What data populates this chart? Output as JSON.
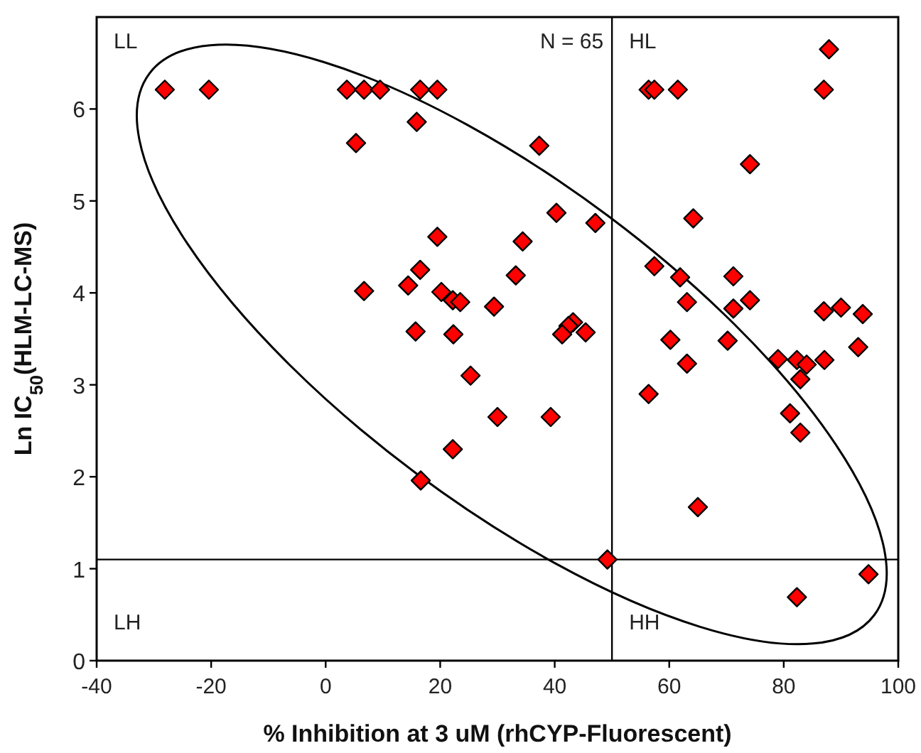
{
  "chart_data": {
    "type": "scatter",
    "xlabel": "% Inhibition at 3 uM (rhCYP-Fluorescent)",
    "ylabel": "Ln IC$_{50}$(HLM-LC-MS)",
    "xlim": [
      -40,
      100
    ],
    "xticks": [
      -40,
      -20,
      0,
      20,
      40,
      60,
      80,
      100
    ],
    "ylim": [
      0,
      7
    ],
    "yticks": [
      0,
      1,
      2,
      3,
      4,
      5,
      6
    ],
    "grid": false,
    "ref_lines": [
      {
        "axis": "x",
        "value": 50,
        "color": "#000000"
      },
      {
        "axis": "y",
        "value": 1.1,
        "color": "#000000"
      }
    ],
    "annotations": [
      "LL",
      "N = 65",
      "HL",
      "LH",
      "HH"
    ],
    "series": [
      {
        "type": "scatter",
        "color": "#ff0000",
        "marker": "diamond",
        "x": [
          -28.1,
          -20.4,
          3.7,
          6.7,
          9.5,
          16.5,
          19.5,
          15.9,
          5.3,
          19.5,
          16.5,
          14.4,
          6.7,
          20.2,
          22.2,
          23.5,
          29.4,
          15.7,
          22.3,
          87.9,
          56.4,
          57.4,
          61.5,
          87.0,
          37.3,
          74.1,
          40.3,
          47.1,
          64.2,
          34.4,
          33.2,
          57.4,
          61.9,
          71.2,
          63.1,
          71.2,
          74.1,
          87.0,
          90.0,
          93.8,
          43.2,
          42.4,
          41.3,
          45.4,
          60.2,
          70.2,
          93.0,
          63.1,
          79.0,
          82.3,
          84.0,
          87.1,
          82.9,
          56.4,
          81.1,
          82.9,
          65.0,
          49.2,
          94.8,
          82.3,
          30.0,
          39.3,
          25.3,
          22.2,
          16.6
        ],
        "values": [
          6.21,
          6.21,
          6.21,
          6.21,
          6.21,
          6.21,
          6.21,
          5.86,
          5.63,
          4.61,
          4.25,
          4.08,
          4.02,
          4.01,
          3.92,
          3.9,
          3.85,
          3.58,
          3.55,
          6.65,
          6.21,
          6.21,
          6.21,
          6.21,
          5.6,
          5.4,
          4.87,
          4.76,
          4.81,
          4.56,
          4.19,
          4.29,
          4.17,
          4.18,
          3.9,
          3.83,
          3.92,
          3.8,
          3.84,
          3.77,
          3.68,
          3.64,
          3.55,
          3.57,
          3.49,
          3.48,
          3.41,
          3.23,
          3.28,
          3.27,
          3.22,
          3.27,
          3.06,
          2.9,
          2.69,
          2.48,
          1.67,
          1.1,
          0.94,
          0.69,
          2.65,
          2.65,
          3.1,
          2.3,
          1.96
        ]
      }
    ]
  }
}
